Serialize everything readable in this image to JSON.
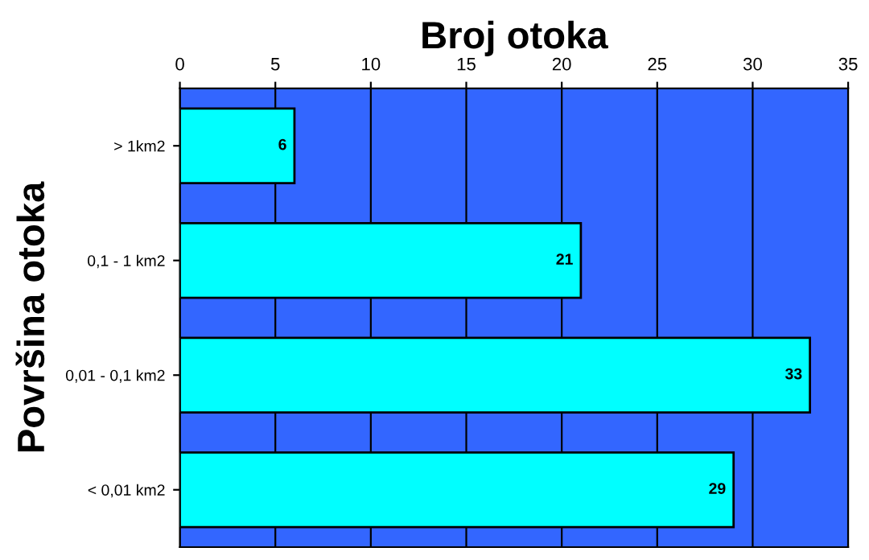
{
  "chart_data": {
    "type": "bar",
    "orientation": "horizontal",
    "xlabel": "Broj otoka",
    "ylabel": "Površina otoka",
    "categories": [
      "> 1km2",
      "0,1 - 1 km2",
      "0,01 - 0,1 km2",
      "< 0,01 km2"
    ],
    "values": [
      6,
      21,
      33,
      29
    ],
    "color": "#00ffff",
    "xlim": [
      0,
      35
    ],
    "xticks": [
      0,
      5,
      10,
      15,
      20,
      25,
      30,
      35
    ],
    "grid": "x",
    "data_labels": true,
    "legend": false
  }
}
